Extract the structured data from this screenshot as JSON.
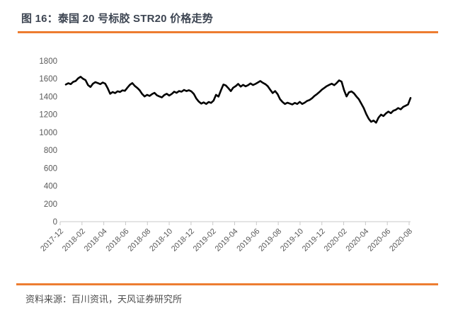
{
  "figure": {
    "title": "图 16：泰国 20 号标胶 STR20 价格走势",
    "source_label": "资料来源：百川资讯，天风证券研究所"
  },
  "colors": {
    "accent_orange": "#ed7d31",
    "title_text": "#3d4552",
    "axis_text": "#595959",
    "axis_line": "#c9c9c9",
    "series_line": "#000000"
  },
  "chart_data": {
    "type": "line",
    "title": "泰国20号标胶STR20价格走势",
    "xlabel": "",
    "ylabel": "",
    "grid": false,
    "legend": false,
    "ylim": [
      0,
      1800
    ],
    "y_ticks": [
      0,
      200,
      400,
      600,
      800,
      1000,
      1200,
      1400,
      1600,
      1800
    ],
    "x_tick_labels": [
      "2017-12",
      "2018-02",
      "2018-04",
      "2018-06",
      "2018-08",
      "2018-10",
      "2018-12",
      "2019-02",
      "2019-04",
      "2019-06",
      "2019-08",
      "2019-10",
      "2019-12",
      "2020-02",
      "2020-04",
      "2020-06",
      "2020-08"
    ],
    "x_unit": "weekly observations from 2017-12 to 2020-08",
    "series": [
      {
        "name": "泰国20号标胶STR20价格",
        "color": "#000000",
        "values": [
          1535,
          1550,
          1540,
          1565,
          1575,
          1605,
          1622,
          1600,
          1585,
          1530,
          1508,
          1545,
          1562,
          1552,
          1540,
          1558,
          1545,
          1495,
          1432,
          1452,
          1440,
          1460,
          1452,
          1470,
          1465,
          1500,
          1532,
          1552,
          1520,
          1498,
          1470,
          1430,
          1402,
          1420,
          1408,
          1428,
          1442,
          1415,
          1402,
          1392,
          1418,
          1432,
          1412,
          1430,
          1455,
          1442,
          1462,
          1455,
          1475,
          1462,
          1472,
          1458,
          1430,
          1378,
          1345,
          1322,
          1335,
          1318,
          1340,
          1330,
          1355,
          1420,
          1400,
          1470,
          1535,
          1525,
          1495,
          1462,
          1500,
          1518,
          1542,
          1512,
          1532,
          1515,
          1528,
          1548,
          1530,
          1542,
          1558,
          1575,
          1555,
          1540,
          1518,
          1478,
          1440,
          1462,
          1428,
          1372,
          1340,
          1318,
          1332,
          1322,
          1312,
          1330,
          1318,
          1342,
          1318,
          1332,
          1352,
          1362,
          1382,
          1408,
          1428,
          1452,
          1478,
          1498,
          1518,
          1532,
          1545,
          1528,
          1552,
          1582,
          1568,
          1472,
          1402,
          1448,
          1458,
          1438,
          1402,
          1372,
          1322,
          1272,
          1205,
          1152,
          1118,
          1132,
          1108,
          1165,
          1198,
          1182,
          1212,
          1232,
          1215,
          1242,
          1252,
          1272,
          1258,
          1285,
          1298,
          1312,
          1385
        ]
      }
    ]
  }
}
